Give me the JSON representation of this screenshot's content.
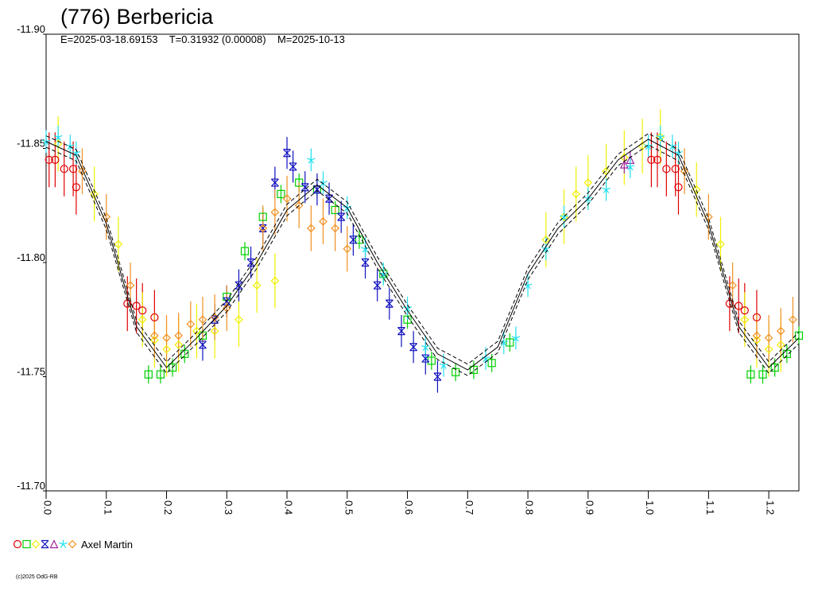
{
  "chart_data": {
    "type": "scatter",
    "title": "(776) Berbericia",
    "subtitle": "E=2025-03-18.69153    T=0.31932 (0.00008)    M=2025-10-13",
    "legend": "Axel Martin",
    "footer": "(c)2025 OdG-RB",
    "xlim": [
      0,
      1.25
    ],
    "ylim": [
      -11.9,
      -11.7
    ],
    "y_inverted": true,
    "xticks": [
      {
        "value": 0,
        "label": "0.0"
      },
      0.1,
      0.2,
      0.3,
      0.4,
      0.5,
      0.6,
      0.7,
      0.8,
      0.9,
      {
        "value": 1,
        "label": "1.0"
      },
      1.1,
      1.2
    ],
    "yticks": [
      {
        "value": -11.9,
        "label": "-11.90"
      },
      -11.85,
      {
        "value": -11.8,
        "label": "-11.80"
      },
      -11.75,
      {
        "value": -11.7,
        "label": "-11.70"
      }
    ],
    "fit": {
      "color": "#000000",
      "band": 0.0025,
      "x": [
        0,
        0.05,
        0.1,
        0.15,
        0.2,
        0.25,
        0.3,
        0.35,
        0.4,
        0.45,
        0.5,
        0.55,
        0.6,
        0.65,
        0.7,
        0.75,
        0.8,
        0.85,
        0.9,
        0.95,
        1,
        1.05,
        1.1,
        1.15,
        1.2,
        1.25
      ],
      "values": [
        -11.853,
        -11.847,
        -11.817,
        -11.772,
        -11.754,
        -11.767,
        -11.781,
        -11.8,
        -11.823,
        -11.834,
        -11.824,
        -11.8,
        -11.779,
        -11.76,
        -11.753,
        -11.763,
        -11.795,
        -11.815,
        -11.828,
        -11.845,
        -11.854,
        -11.847,
        -11.817,
        -11.772,
        -11.754,
        -11.767
      ]
    },
    "series": [
      {
        "color": "#e00000",
        "marker": "circle",
        "error": 0.012,
        "x": [
          0.005,
          0.015,
          0.03,
          0.045,
          0.05,
          0.135,
          0.15,
          0.16,
          0.18,
          1.005,
          1.015,
          1.03,
          1.045,
          1.05,
          1.135,
          1.15,
          1.16,
          1.18
        ],
        "values": [
          -11.845,
          -11.845,
          -11.841,
          -11.841,
          -11.833,
          -11.782,
          -11.781,
          -11.779,
          -11.776,
          -11.845,
          -11.845,
          -11.841,
          -11.841,
          -11.833,
          -11.782,
          -11.781,
          -11.779,
          -11.776
        ]
      },
      {
        "color": "#00d000",
        "marker": "square",
        "error": 0.004,
        "x": [
          0.17,
          0.19,
          0.21,
          0.23,
          0.26,
          0.3,
          0.33,
          0.36,
          0.39,
          0.42,
          0.45,
          0.48,
          0.52,
          0.56,
          0.6,
          0.64,
          0.68,
          0.71,
          0.74,
          0.77,
          1.17,
          1.19,
          1.21,
          1.23,
          1.25
        ],
        "values": [
          -11.751,
          -11.751,
          -11.754,
          -11.76,
          -11.768,
          -11.785,
          -11.805,
          -11.82,
          -11.83,
          -11.835,
          -11.832,
          -11.823,
          -11.81,
          -11.795,
          -11.775,
          -11.757,
          -11.752,
          -11.753,
          -11.756,
          -11.765,
          -11.751,
          -11.751,
          -11.754,
          -11.76,
          -11.768
        ]
      },
      {
        "color": "#f0f000",
        "marker": "diamond",
        "error": 0.012,
        "x": [
          0.02,
          0.08,
          0.12,
          0.16,
          0.18,
          0.2,
          0.22,
          0.25,
          0.28,
          0.32,
          0.35,
          0.38,
          0.83,
          0.86,
          0.88,
          0.9,
          0.93,
          0.96,
          0.99,
          1.02,
          1.08,
          1.12,
          1.16,
          1.18,
          1.2,
          1.22
        ],
        "values": [
          -11.852,
          -11.83,
          -11.808,
          -11.775,
          -11.766,
          -11.762,
          -11.764,
          -11.77,
          -11.77,
          -11.775,
          -11.79,
          -11.792,
          -11.81,
          -11.82,
          -11.83,
          -11.835,
          -11.84,
          -11.846,
          -11.851,
          -11.855,
          -11.832,
          -11.808,
          -11.775,
          -11.766,
          -11.762,
          -11.764
        ]
      },
      {
        "color": "#1010c0",
        "marker": "xstar",
        "error": 0.007,
        "x": [
          0.26,
          0.28,
          0.3,
          0.32,
          0.34,
          0.36,
          0.38,
          0.4,
          0.41,
          0.43,
          0.45,
          0.47,
          0.49,
          0.51,
          0.53,
          0.55,
          0.57,
          0.59,
          0.61,
          0.63,
          0.65
        ],
        "values": [
          -11.764,
          -11.775,
          -11.783,
          -11.79,
          -11.8,
          -11.815,
          -11.835,
          -11.848,
          -11.842,
          -11.833,
          -11.832,
          -11.828,
          -11.82,
          -11.81,
          -11.8,
          -11.79,
          -11.782,
          -11.77,
          -11.763,
          -11.758,
          -11.75
        ]
      },
      {
        "color": "#a020a0",
        "marker": "triangle",
        "error": 0.004,
        "x": [
          0.96,
          0.97
        ],
        "values": [
          -11.843,
          -11.845
        ]
      },
      {
        "color": "#20e0f0",
        "marker": "star",
        "error": 0.005,
        "x": [
          0,
          0.02,
          0.04,
          0.05,
          0.44,
          0.46,
          0.5,
          0.53,
          0.56,
          0.6,
          0.63,
          0.66,
          0.73,
          0.76,
          0.78,
          0.8,
          0.83,
          0.86,
          0.9,
          0.93,
          0.97,
          1,
          1.02,
          1.04,
          1.05
        ],
        "values": [
          -11.853,
          -11.855,
          -11.851,
          -11.848,
          -11.845,
          -11.835,
          -11.824,
          -11.806,
          -11.795,
          -11.78,
          -11.763,
          -11.755,
          -11.758,
          -11.765,
          -11.767,
          -11.79,
          -11.806,
          -11.82,
          -11.828,
          -11.832,
          -11.842,
          -11.851,
          -11.855,
          -11.851,
          -11.848
        ]
      },
      {
        "color": "#f09020",
        "marker": "diamond",
        "error": 0.01,
        "x": [
          0.06,
          0.1,
          0.14,
          0.18,
          0.2,
          0.22,
          0.24,
          0.26,
          0.28,
          0.3,
          0.36,
          0.38,
          0.4,
          0.42,
          0.44,
          0.46,
          0.48,
          0.5,
          1.06,
          1.1,
          1.14,
          1.18,
          1.2,
          1.22,
          1.24
        ],
        "values": [
          -11.84,
          -11.82,
          -11.79,
          -11.768,
          -11.767,
          -11.768,
          -11.773,
          -11.775,
          -11.776,
          -11.78,
          -11.815,
          -11.822,
          -11.828,
          -11.825,
          -11.815,
          -11.818,
          -11.815,
          -11.806,
          -11.84,
          -11.82,
          -11.79,
          -11.768,
          -11.767,
          -11.77,
          -11.775
        ]
      }
    ]
  }
}
